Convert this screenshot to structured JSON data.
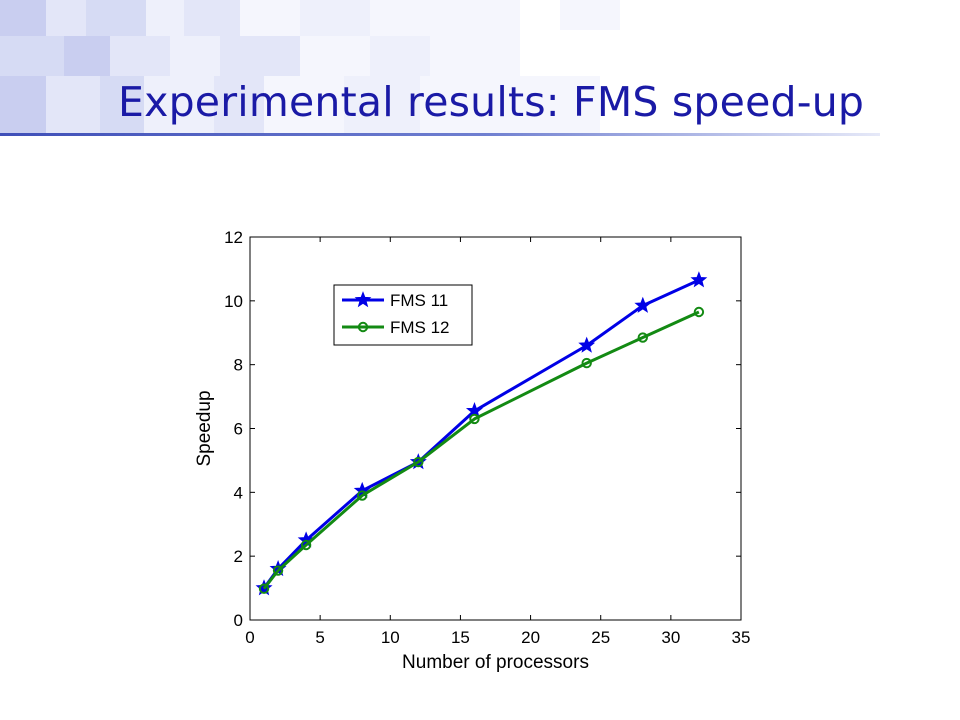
{
  "slide": {
    "title": "Experimental results: FMS speed-up",
    "accent_color": "#1a1aa6",
    "background_tile_colors": [
      "#c9cef0",
      "#d6dbf4",
      "#e3e6f8",
      "#eef0fb",
      "#f5f6fd"
    ]
  },
  "chart_data": {
    "type": "line",
    "title": "",
    "xlabel": "Number of processors",
    "ylabel": "Speedup",
    "xlim": [
      0,
      35
    ],
    "ylim": [
      0,
      12
    ],
    "xticks": [
      0,
      5,
      10,
      15,
      20,
      25,
      30,
      35
    ],
    "yticks": [
      0,
      2,
      4,
      6,
      8,
      10,
      12
    ],
    "grid": false,
    "legend_position": "top-left",
    "series": [
      {
        "name": "FMS 11",
        "color": "#0000e6",
        "marker": "star",
        "x": [
          1,
          2,
          4,
          8,
          12,
          16,
          24,
          28,
          32
        ],
        "y": [
          1.0,
          1.6,
          2.5,
          4.05,
          4.95,
          6.55,
          8.6,
          9.85,
          10.65
        ]
      },
      {
        "name": "FMS 12",
        "color": "#138a13",
        "marker": "circle",
        "x": [
          1,
          2,
          4,
          8,
          12,
          16,
          24,
          28,
          32
        ],
        "y": [
          0.98,
          1.55,
          2.35,
          3.9,
          4.95,
          6.3,
          8.05,
          8.85,
          9.65
        ]
      }
    ]
  }
}
